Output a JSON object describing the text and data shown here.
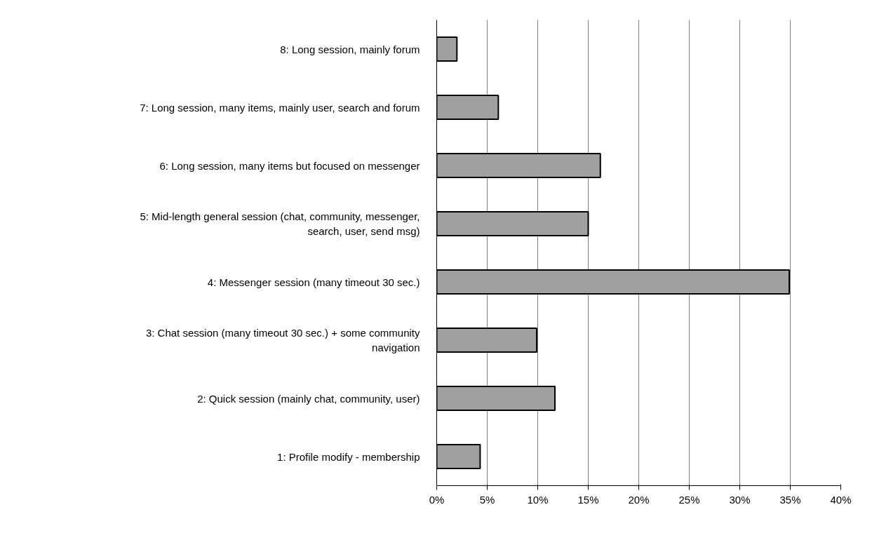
{
  "chart_data": {
    "type": "bar",
    "orientation": "horizontal",
    "categories": [
      "8: Long session, mainly forum",
      "7: Long session, many items, mainly user, search and forum",
      "6: Long session, many items but focused on messenger",
      "5: Mid-length general session (chat, community, messenger, search, user, send msg)",
      "4: Messenger session (many timeout 30 sec.)",
      "3: Chat session (many timeout 30 sec.) + some community navigation",
      "2: Quick session (mainly chat, community, user)",
      "1: Profile modify - membership"
    ],
    "values": [
      2.0,
      6.1,
      16.2,
      15.0,
      34.9,
      9.9,
      11.7,
      4.3
    ],
    "color": "#a0a0a0",
    "xlim": [
      0,
      40
    ],
    "xticks": [
      {
        "value": 0,
        "label": "0%"
      },
      {
        "value": 5,
        "label": "5%"
      },
      {
        "value": 10,
        "label": "10%"
      },
      {
        "value": 15,
        "label": "15%"
      },
      {
        "value": 20,
        "label": "20%"
      },
      {
        "value": 25,
        "label": "25%"
      },
      {
        "value": 30,
        "label": "30%"
      },
      {
        "value": 35,
        "label": "35%"
      },
      {
        "value": 40,
        "label": "40%"
      }
    ],
    "grid": "x"
  }
}
